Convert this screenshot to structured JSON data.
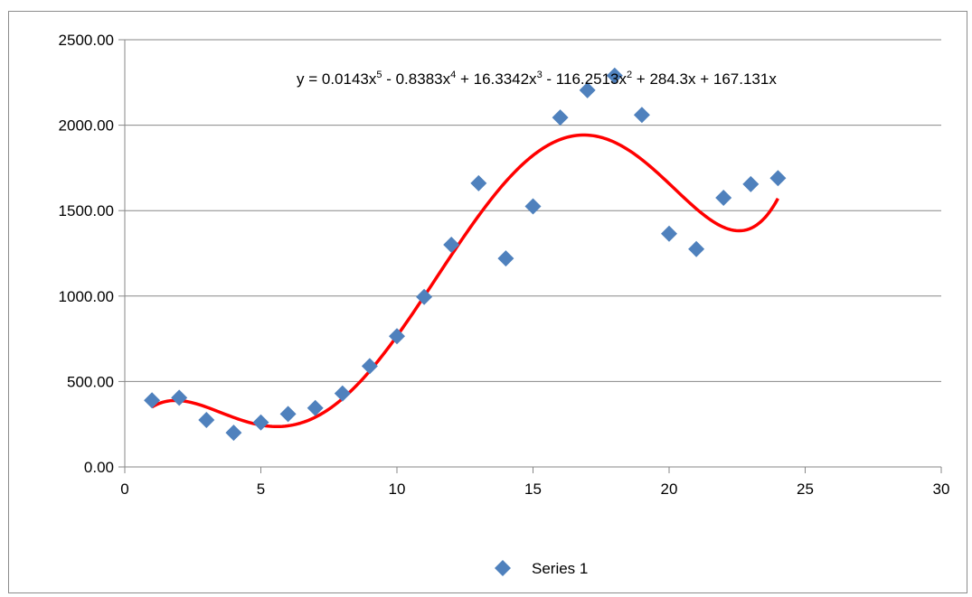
{
  "chart_data": {
    "type": "scatter",
    "series": [
      {
        "name": "Series 1",
        "color": "#4f81bd",
        "marker": "diamond",
        "x": [
          1,
          2,
          3,
          4,
          5,
          6,
          7,
          8,
          9,
          10,
          11,
          12,
          13,
          14,
          15,
          16,
          17,
          18,
          19,
          20,
          21,
          22,
          23,
          24
        ],
        "y": [
          390,
          405,
          275,
          200,
          260,
          310,
          345,
          430,
          590,
          765,
          995,
          1300,
          1660,
          1220,
          1525,
          2045,
          2205,
          2290,
          2060,
          1365,
          1275,
          1575,
          1655,
          1690
        ]
      }
    ],
    "trendline": {
      "type": "polynomial",
      "order": 5,
      "color": "#ff0000",
      "coefficients": [
        0.0143,
        -0.8383,
        16.3342,
        -116.2513,
        284.3,
        167.131
      ],
      "x_range": [
        1,
        24
      ]
    },
    "equation": {
      "prefix": "y = 0.0143x",
      "parts": [
        {
          "base": "y = 0.0143x",
          "sup": "5"
        },
        {
          "base": " - 0.8383x",
          "sup": "4"
        },
        {
          "base": " + 16.3342x",
          "sup": "3"
        },
        {
          "base": " - 116.2513x",
          "sup": "2"
        },
        {
          "base": " + 284.3x + 167.131x",
          "sup": ""
        }
      ]
    },
    "xlim": [
      0,
      30
    ],
    "ylim": [
      0,
      2500
    ],
    "x_ticks": [
      "0",
      "5",
      "10",
      "15",
      "20",
      "25",
      "30"
    ],
    "y_ticks": [
      "0.00",
      "500.00",
      "1000.00",
      "1500.00",
      "2000.00",
      "2500.00"
    ],
    "grid": "horizontal",
    "legend_position": "bottom",
    "gridline_color": "#878787",
    "axis_color": "#878787"
  }
}
